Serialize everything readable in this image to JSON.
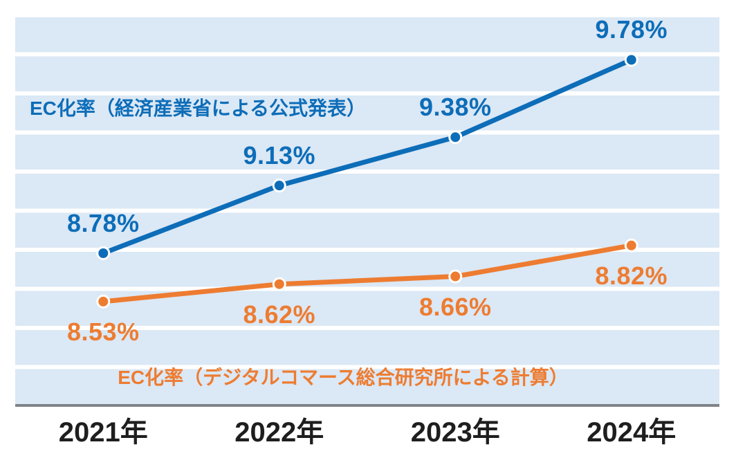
{
  "chart_data": {
    "type": "line",
    "categories": [
      "2021年",
      "2022年",
      "2023年",
      "2024年"
    ],
    "series": [
      {
        "name": "EC化率（経済産業省による公式発表）",
        "color": "#0d6db8",
        "values": [
          8.78,
          9.13,
          9.38,
          9.78
        ],
        "value_labels": [
          "8.78%",
          "9.13%",
          "9.38%",
          "9.78%"
        ],
        "value_label_side": "above",
        "name_label_anchor": {
          "x": 286,
          "y": 157
        }
      },
      {
        "name": "EC化率（デジタルコマース総合研究所による計算）",
        "color": "#ed7c31",
        "values": [
          8.53,
          8.62,
          8.66,
          8.82
        ],
        "value_labels": [
          "8.53%",
          "8.62%",
          "8.66%",
          "8.82%"
        ],
        "value_label_side": "below",
        "name_label_anchor": {
          "x": 496,
          "y": 546
        }
      }
    ],
    "ylim": [
      8.0,
      10.0
    ],
    "grid": "horizontal-bands",
    "legend_position": "inline-series-labels",
    "band_color": "#dbe8f5",
    "band_gap_color": "#ffffff",
    "axis_line_color": "#7f8387",
    "tick_label_color": "#1e1e1e"
  }
}
